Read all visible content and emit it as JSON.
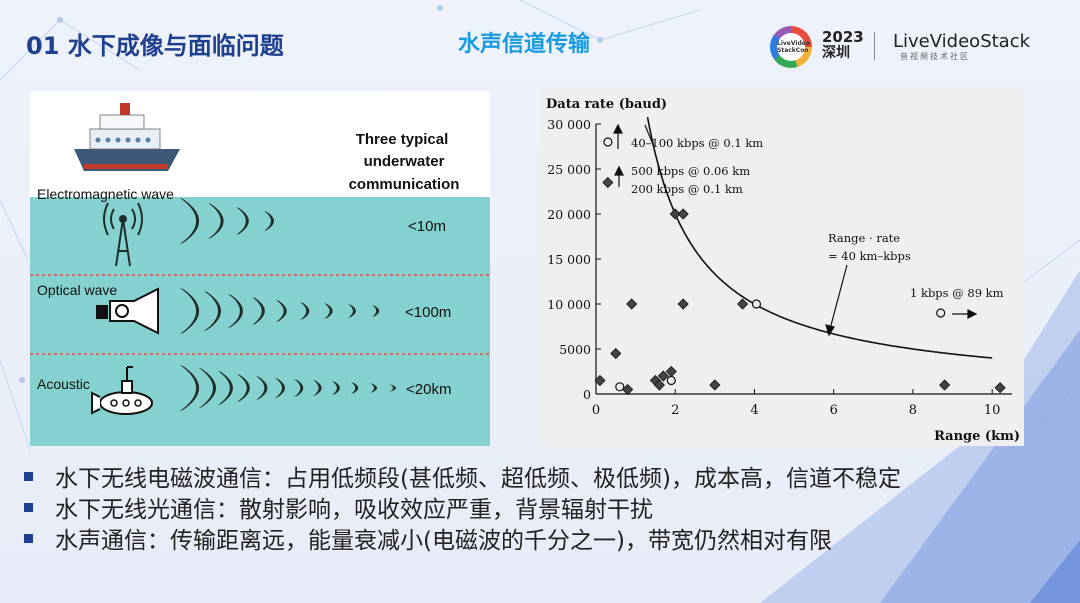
{
  "header": {
    "slide_title": "01  水下成像与面临问题",
    "section_title": "水声信道传输",
    "logo": {
      "ring_text": "LiveVideo StackCon",
      "year": "2023",
      "city": "深圳",
      "brand": "LiveVideoStack",
      "brand_sub": "音视频技术社区"
    }
  },
  "diagram": {
    "heading": [
      "Three typical",
      "underwater",
      "communication"
    ],
    "rows": [
      {
        "label": "Electromagnetic wave",
        "range": "<10m",
        "icon": "antenna-icon"
      },
      {
        "label": "Optical wave",
        "range": "<100m",
        "icon": "flashlight-icon"
      },
      {
        "label": "Acoustic",
        "range": "<20km",
        "icon": "submarine-icon"
      }
    ],
    "ship_icon": "ship-icon",
    "colors": {
      "water": "#84d1cf",
      "divider": "#d9534f",
      "wave": "#1f2d2d"
    }
  },
  "chart_data": {
    "type": "scatter",
    "title": "",
    "ylabel": "Data rate (baud)",
    "xlabel": "Range (km)",
    "xlim": [
      0,
      10.5
    ],
    "ylim": [
      0,
      30000
    ],
    "x_ticks": [
      0,
      2,
      4,
      6,
      8,
      10
    ],
    "y_ticks": [
      0,
      5000,
      10000,
      15000,
      20000,
      25000,
      30000
    ],
    "y_tick_labels": [
      "0",
      "5000",
      "10 000",
      "15 000",
      "20 000",
      "25 000",
      "30 000"
    ],
    "grid": false,
    "series": [
      {
        "marker": "diamond",
        "points": [
          [
            0.1,
            1500
          ],
          [
            0.3,
            23500
          ],
          [
            0.5,
            4500
          ],
          [
            0.8,
            500
          ],
          [
            0.9,
            10000
          ],
          [
            1.5,
            1500
          ],
          [
            1.6,
            1000
          ],
          [
            1.7,
            2000
          ],
          [
            1.9,
            2500
          ],
          [
            2.0,
            20000
          ],
          [
            2.2,
            20000
          ],
          [
            2.2,
            10000
          ],
          [
            3.0,
            1000
          ],
          [
            3.7,
            10000
          ],
          [
            8.8,
            1000
          ],
          [
            10.2,
            700
          ]
        ]
      },
      {
        "marker": "circle",
        "points": [
          [
            0.3,
            28000
          ],
          [
            0.6,
            800
          ],
          [
            1.9,
            1500
          ],
          [
            4.05,
            10000
          ],
          [
            8.7,
            9000
          ]
        ]
      }
    ],
    "curve": {
      "formula": "rate = 40 / range",
      "x_from": 1.3,
      "x_to": 10.0
    },
    "annotations": [
      "40–100 kbps @ 0.1 km",
      "500 kbps @ 0.06 km",
      "200 kbps @ 0.1 km",
      "Range · rate",
      "= 40 km–kbps",
      "1 kbps @ 89 km"
    ]
  },
  "bullets": [
    "水下无线电磁波通信：占用低频段(甚低频、超低频、极低频)，成本高，信道不稳定",
    "水下无线光通信：散射影响，吸收效应严重，背景辐射干扰",
    "水声通信：传输距离远，能量衰减小(电磁波的千分之一)，带宽仍然相对有限"
  ]
}
